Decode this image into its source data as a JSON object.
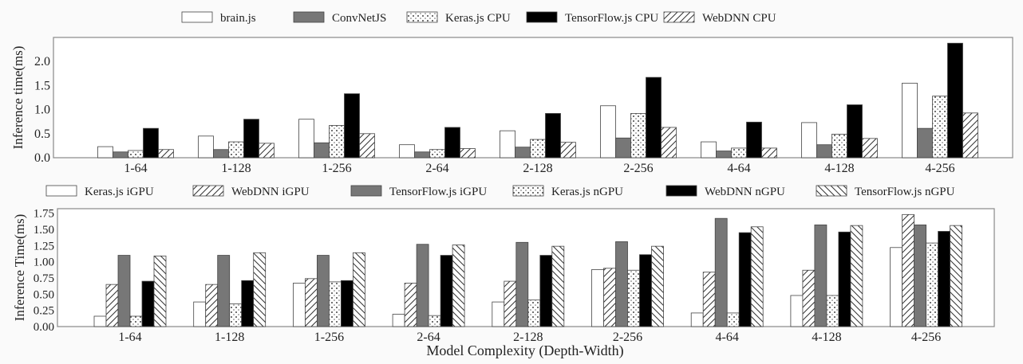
{
  "chart_data": [
    {
      "type": "bar",
      "ylabel": "Inference time(ms)",
      "xlabel": "",
      "ylim": [
        0,
        2.5
      ],
      "yticks": [
        "0.0",
        "0.5",
        "1.0",
        "1.5",
        "2.0"
      ],
      "legend_placement": "top",
      "categories": [
        "1-64",
        "1-128",
        "1-256",
        "2-64",
        "2-128",
        "2-256",
        "4-64",
        "4-128",
        "4-256"
      ],
      "series": [
        {
          "name": "brain.js",
          "fill": "white",
          "values": [
            0.23,
            0.45,
            0.8,
            0.27,
            0.56,
            1.08,
            0.33,
            0.73,
            1.55
          ]
        },
        {
          "name": "ConvNetJS",
          "fill": "gray",
          "values": [
            0.12,
            0.17,
            0.31,
            0.12,
            0.22,
            0.41,
            0.14,
            0.27,
            0.61
          ]
        },
        {
          "name": "Keras.js CPU",
          "fill": "dots",
          "values": [
            0.15,
            0.33,
            0.67,
            0.17,
            0.38,
            0.92,
            0.2,
            0.49,
            1.28
          ]
        },
        {
          "name": "TensorFlow.js CPU",
          "fill": "black",
          "values": [
            0.61,
            0.8,
            1.33,
            0.63,
            0.92,
            1.67,
            0.74,
            1.1,
            2.38
          ]
        },
        {
          "name": "WebDNN CPU",
          "fill": "fwdhatch",
          "values": [
            0.17,
            0.3,
            0.5,
            0.19,
            0.32,
            0.63,
            0.2,
            0.4,
            0.93
          ]
        }
      ]
    },
    {
      "type": "bar",
      "ylabel": "Inference Time(ms)",
      "xlabel": "Model Complexity (Depth-Width)",
      "ylim": [
        0,
        1.82
      ],
      "yticks": [
        "0.00",
        "0.25",
        "0.50",
        "0.75",
        "1.00",
        "1.25",
        "1.50",
        "1.75"
      ],
      "legend_placement": "top",
      "categories": [
        "1-64",
        "1-128",
        "1-256",
        "2-64",
        "2-128",
        "2-256",
        "4-64",
        "4-128",
        "4-256"
      ],
      "series": [
        {
          "name": "Keras.js iGPU",
          "fill": "white",
          "values": [
            0.16,
            0.38,
            0.67,
            0.19,
            0.38,
            0.88,
            0.21,
            0.48,
            1.22
          ]
        },
        {
          "name": "WebDNN iGPU",
          "fill": "fwdhatch",
          "values": [
            0.65,
            0.65,
            0.74,
            0.67,
            0.7,
            0.9,
            0.84,
            0.87,
            1.73
          ]
        },
        {
          "name": "TensorFlow.js iGPU",
          "fill": "gray",
          "values": [
            1.1,
            1.1,
            1.1,
            1.27,
            1.3,
            1.31,
            1.67,
            1.57,
            1.57
          ]
        },
        {
          "name": "Keras.js nGPU",
          "fill": "dots",
          "values": [
            0.16,
            0.35,
            0.69,
            0.17,
            0.41,
            0.87,
            0.21,
            0.48,
            1.29
          ]
        },
        {
          "name": "WebDNN nGPU",
          "fill": "black",
          "values": [
            0.7,
            0.71,
            0.71,
            1.1,
            1.1,
            1.11,
            1.45,
            1.46,
            1.47
          ]
        },
        {
          "name": "TensorFlow.js nGPU",
          "fill": "backhatch",
          "values": [
            1.09,
            1.14,
            1.14,
            1.26,
            1.24,
            1.24,
            1.54,
            1.56,
            1.56
          ]
        }
      ]
    }
  ],
  "colors": {
    "gray": "#777777",
    "black": "#000000",
    "white": "#ffffff",
    "axis": "#888888"
  }
}
